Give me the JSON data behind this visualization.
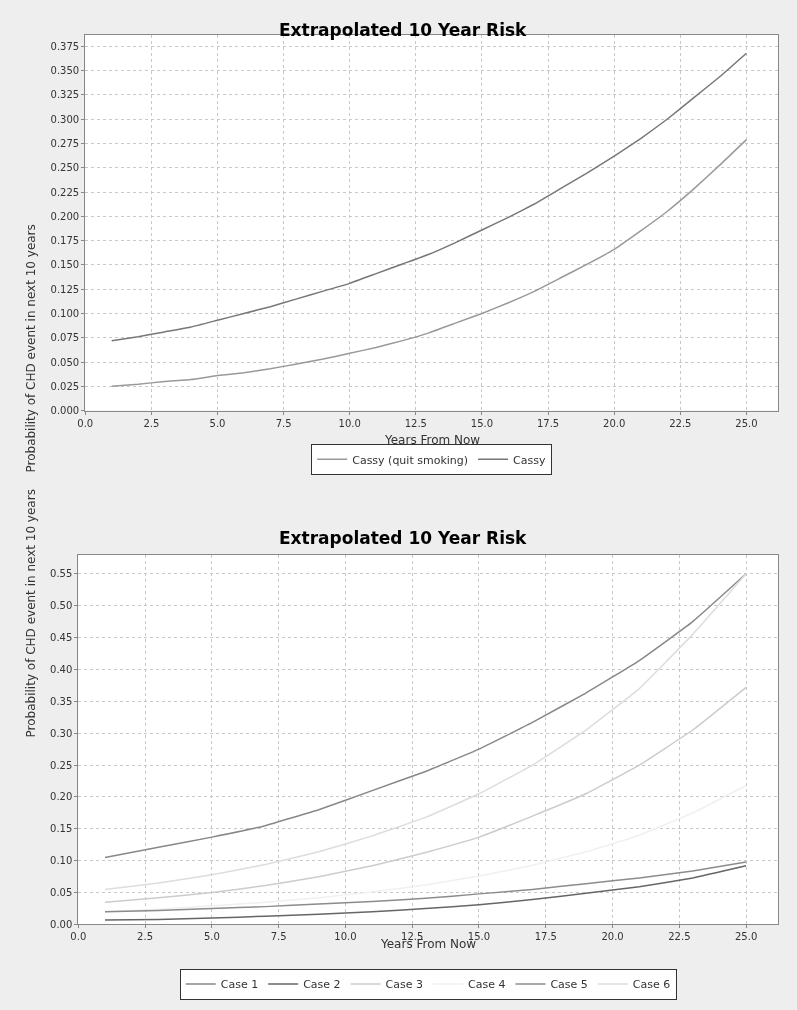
{
  "chart_data": [
    {
      "type": "line",
      "title": "Extrapolated 10 Year Risk",
      "xlabel": "Years From Now",
      "ylabel": "Probability of CHD event in next 10 years",
      "grid": true,
      "legend": "bottom",
      "marker": "none",
      "line_style": "solid",
      "xlim": [
        0,
        26.2
      ],
      "ylim": [
        0,
        0.387
      ],
      "xticks": [
        {
          "value": 0,
          "label": "0.0"
        },
        {
          "value": 2.5,
          "label": "2.5"
        },
        {
          "value": 5,
          "label": "5.0"
        },
        {
          "value": 7.5,
          "label": "7.5"
        },
        {
          "value": 10,
          "label": "10.0"
        },
        {
          "value": 12.5,
          "label": "12.5"
        },
        {
          "value": 15,
          "label": "15.0"
        },
        {
          "value": 17.5,
          "label": "17.5"
        },
        {
          "value": 20,
          "label": "20.0"
        },
        {
          "value": 22.5,
          "label": "22.5"
        },
        {
          "value": 25,
          "label": "25.0"
        }
      ],
      "yticks": [
        {
          "value": 0,
          "label": "0.000"
        },
        0.025,
        {
          "value": 0.05,
          "label": "0.050"
        },
        0.075,
        {
          "value": 0.1,
          "label": "0.100"
        },
        0.125,
        {
          "value": 0.15,
          "label": "0.150"
        },
        0.175,
        {
          "value": 0.2,
          "label": "0.200"
        },
        0.225,
        {
          "value": 0.25,
          "label": "0.250"
        },
        0.275,
        {
          "value": 0.3,
          "label": "0.300"
        },
        0.325,
        {
          "value": 0.35,
          "label": "0.350"
        },
        0.375
      ],
      "x": [
        1,
        2,
        3,
        4,
        5,
        6,
        7,
        8,
        9,
        10,
        11,
        12,
        13,
        14,
        15,
        16,
        17,
        18,
        19,
        20,
        21,
        22,
        23,
        24,
        25
      ],
      "series": [
        {
          "name": "Cassy (quit smoking)",
          "color": "#999999",
          "values": [
            0.025,
            0.027,
            0.03,
            0.032,
            0.036,
            0.039,
            0.043,
            0.048,
            0.053,
            0.059,
            0.065,
            0.072,
            0.08,
            0.09,
            0.1,
            0.111,
            0.123,
            0.137,
            0.151,
            0.166,
            0.185,
            0.205,
            0.228,
            0.253,
            0.279
          ]
        },
        {
          "name": "Cassy",
          "color": "#777777",
          "values": [
            0.072,
            0.076,
            0.081,
            0.086,
            0.093,
            0.1,
            0.107,
            0.115,
            0.123,
            0.131,
            0.141,
            0.151,
            0.161,
            0.173,
            0.186,
            0.199,
            0.213,
            0.229,
            0.245,
            0.262,
            0.28,
            0.3,
            0.322,
            0.344,
            0.368
          ]
        }
      ]
    },
    {
      "type": "line",
      "title": "Extrapolated 10 Year Risk",
      "xlabel": "Years From Now",
      "ylabel": "Probability of CHD event in next 10 years",
      "grid": true,
      "legend": "bottom",
      "marker": "none",
      "line_style": "solid",
      "xlim": [
        0,
        26.2
      ],
      "ylim": [
        0,
        0.58
      ],
      "xticks": [
        {
          "value": 0,
          "label": "0.0"
        },
        {
          "value": 2.5,
          "label": "2.5"
        },
        {
          "value": 5,
          "label": "5.0"
        },
        {
          "value": 7.5,
          "label": "7.5"
        },
        {
          "value": 10,
          "label": "10.0"
        },
        {
          "value": 12.5,
          "label": "12.5"
        },
        {
          "value": 15,
          "label": "15.0"
        },
        {
          "value": 17.5,
          "label": "17.5"
        },
        {
          "value": 20,
          "label": "20.0"
        },
        {
          "value": 22.5,
          "label": "22.5"
        },
        {
          "value": 25,
          "label": "25.0"
        }
      ],
      "yticks": [
        {
          "value": 0,
          "label": "0.00"
        },
        0.05,
        {
          "value": 0.1,
          "label": "0.10"
        },
        0.15,
        {
          "value": 0.2,
          "label": "0.20"
        },
        0.25,
        {
          "value": 0.3,
          "label": "0.30"
        },
        0.35,
        {
          "value": 0.4,
          "label": "0.40"
        },
        0.45,
        {
          "value": 0.5,
          "label": "0.50"
        },
        0.55
      ],
      "x": [
        1,
        3,
        5,
        7,
        9,
        11,
        13,
        15,
        17,
        19,
        21,
        23,
        25
      ],
      "series": [
        {
          "name": "Case 1",
          "color": "#888888",
          "values": [
            0.105,
            0.121,
            0.137,
            0.155,
            0.18,
            0.21,
            0.24,
            0.275,
            0.317,
            0.363,
            0.414,
            0.475,
            0.55
          ]
        },
        {
          "name": "Case 2",
          "color": "#666666",
          "values": [
            0.007,
            0.008,
            0.01,
            0.013,
            0.016,
            0.02,
            0.025,
            0.031,
            0.039,
            0.049,
            0.059,
            0.073,
            0.092
          ]
        },
        {
          "name": "Case 3",
          "color": "#cccccc",
          "values": [
            0.035,
            0.042,
            0.05,
            0.061,
            0.075,
            0.092,
            0.113,
            0.137,
            0.17,
            0.205,
            0.25,
            0.305,
            0.372
          ]
        },
        {
          "name": "Case 4",
          "color": "#f0f0f0",
          "values": [
            0.02,
            0.024,
            0.029,
            0.035,
            0.042,
            0.051,
            0.062,
            0.076,
            0.093,
            0.114,
            0.14,
            0.175,
            0.218
          ]
        },
        {
          "name": "Case 5",
          "color": "#8c8c8c",
          "values": [
            0.02,
            0.022,
            0.025,
            0.028,
            0.032,
            0.036,
            0.041,
            0.048,
            0.055,
            0.064,
            0.073,
            0.084,
            0.098
          ]
        },
        {
          "name": "Case 6",
          "color": "#dddddd",
          "values": [
            0.055,
            0.065,
            0.078,
            0.094,
            0.114,
            0.139,
            0.168,
            0.205,
            0.25,
            0.305,
            0.37,
            0.455,
            0.55
          ]
        }
      ]
    }
  ]
}
